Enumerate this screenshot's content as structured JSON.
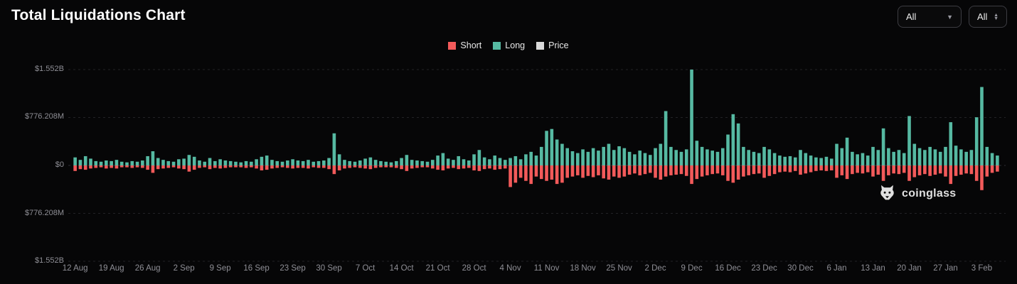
{
  "header": {
    "title": "Total Liquidations Chart",
    "filters": [
      {
        "value": "All"
      },
      {
        "value": "All"
      }
    ]
  },
  "watermark": {
    "text": "coinglass"
  },
  "chart_data": {
    "type": "bar",
    "title": "Total Liquidations Chart",
    "legend": [
      {
        "label": "Short",
        "color": "#f25a5a"
      },
      {
        "label": "Long",
        "color": "#56b9a2"
      },
      {
        "label": "Price",
        "color": "#d9d9d9"
      }
    ],
    "y_axis": {
      "tick_labels": [
        "$1.552B",
        "$776.208M",
        "$0",
        "$776.208M",
        "$1.552B"
      ],
      "levels_musd": [
        1552,
        776.208,
        0,
        -776.208,
        -1552
      ],
      "unit": "USD"
    },
    "x_tick_labels": [
      "12 Aug",
      "19 Aug",
      "26 Aug",
      "2 Sep",
      "9 Sep",
      "16 Sep",
      "23 Sep",
      "30 Sep",
      "7 Oct",
      "14 Oct",
      "21 Oct",
      "28 Oct",
      "4 Nov",
      "11 Nov",
      "18 Nov",
      "25 Nov",
      "2 Dec",
      "9 Dec",
      "16 Dec",
      "23 Dec",
      "30 Dec",
      "6 Jan",
      "13 Jan",
      "20 Jan",
      "27 Jan",
      "3 Feb"
    ],
    "x_tick_interval_days": 7,
    "grid": "dashed-horizontal",
    "legend_position": "top-center",
    "series": [
      {
        "name": "Short",
        "direction": "down",
        "color": "#f25a5a",
        "values_musd": [
          90,
          60,
          70,
          50,
          40,
          30,
          50,
          40,
          50,
          30,
          30,
          40,
          30,
          40,
          70,
          120,
          60,
          50,
          40,
          30,
          50,
          60,
          100,
          70,
          40,
          30,
          60,
          40,
          50,
          40,
          30,
          30,
          30,
          40,
          30,
          50,
          80,
          70,
          50,
          40,
          30,
          40,
          50,
          40,
          40,
          50,
          30,
          40,
          40,
          60,
          140,
          80,
          50,
          40,
          30,
          40,
          50,
          60,
          40,
          30,
          30,
          30,
          40,
          60,
          90,
          50,
          40,
          30,
          30,
          50,
          70,
          80,
          50,
          40,
          60,
          50,
          40,
          80,
          90,
          60,
          50,
          70,
          60,
          50,
          350,
          280,
          200,
          250,
          300,
          180,
          220,
          250,
          230,
          300,
          280,
          200,
          180,
          160,
          200,
          170,
          190,
          160,
          210,
          230,
          180,
          200,
          180,
          150,
          130,
          160,
          140,
          120,
          200,
          230,
          180,
          160,
          150,
          140,
          170,
          300,
          220,
          180,
          160,
          140,
          130,
          160,
          250,
          280,
          230,
          180,
          160,
          140,
          130,
          200,
          170,
          140,
          110,
          100,
          110,
          90,
          150,
          130,
          110,
          90,
          80,
          90,
          80,
          200,
          160,
          220,
          140,
          120,
          130,
          110,
          180,
          150,
          250,
          160,
          130,
          140,
          120,
          250,
          190,
          160,
          140,
          170,
          150,
          130,
          180,
          300,
          170,
          150,
          130,
          140,
          250,
          400,
          180,
          120,
          100
        ]
      },
      {
        "name": "Long",
        "direction": "up",
        "color": "#56b9a2",
        "values_musd": [
          130,
          90,
          150,
          110,
          70,
          60,
          80,
          70,
          90,
          60,
          50,
          70,
          60,
          80,
          150,
          230,
          120,
          90,
          70,
          60,
          100,
          110,
          170,
          140,
          80,
          60,
          120,
          70,
          100,
          80,
          70,
          60,
          50,
          70,
          60,
          100,
          140,
          160,
          90,
          70,
          60,
          80,
          100,
          80,
          70,
          90,
          60,
          70,
          80,
          120,
          520,
          180,
          90,
          70,
          60,
          80,
          110,
          130,
          90,
          70,
          60,
          50,
          70,
          120,
          170,
          90,
          80,
          70,
          60,
          90,
          160,
          200,
          110,
          90,
          150,
          100,
          80,
          180,
          250,
          130,
          100,
          160,
          120,
          90,
          120,
          150,
          100,
          180,
          220,
          160,
          300,
          560,
          590,
          420,
          350,
          280,
          230,
          200,
          260,
          220,
          280,
          240,
          300,
          350,
          250,
          310,
          280,
          220,
          180,
          240,
          200,
          170,
          280,
          350,
          880,
          300,
          250,
          220,
          260,
          1552,
          400,
          300,
          260,
          240,
          220,
          280,
          500,
          830,
          680,
          300,
          250,
          220,
          200,
          300,
          260,
          200,
          160,
          140,
          150,
          130,
          250,
          200,
          160,
          130,
          120,
          140,
          110,
          350,
          280,
          450,
          220,
          180,
          200,
          160,
          300,
          250,
          600,
          280,
          220,
          250,
          200,
          800,
          350,
          280,
          250,
          300,
          260,
          220,
          300,
          700,
          320,
          260,
          220,
          250,
          780,
          1270,
          300,
          200,
          160
        ]
      },
      {
        "name": "Price",
        "direction": "line",
        "color": "#d9d9d9",
        "values_musd": []
      }
    ]
  }
}
